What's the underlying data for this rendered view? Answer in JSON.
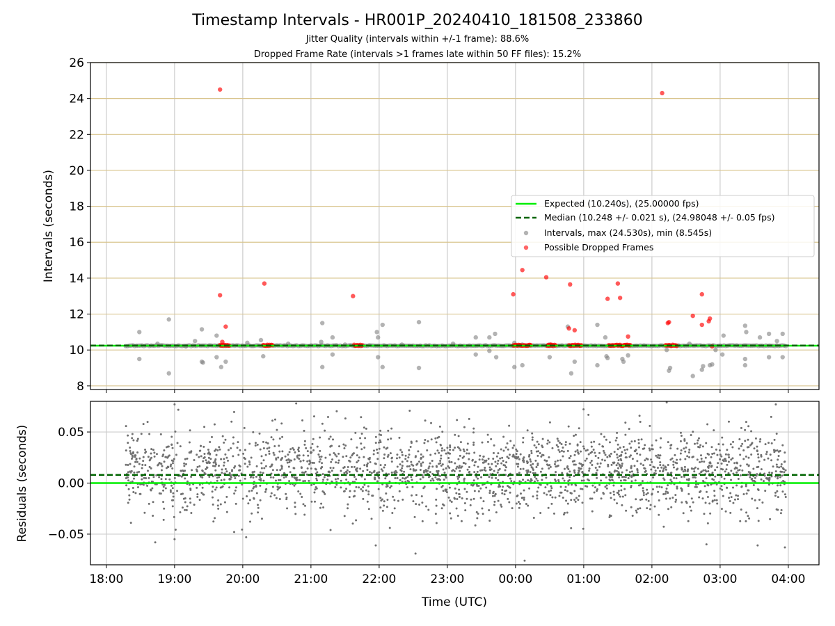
{
  "header": {
    "title": "Timestamp Intervals - HR001P_20240410_181508_233860",
    "subtitle1": "Jitter Quality (intervals within +/-1 frame): 88.6%",
    "subtitle2": "Dropped Frame Rate (intervals >1 frames late within 50 FF files): 15.2%"
  },
  "chart_data": [
    {
      "type": "scatter",
      "panel": "top",
      "ylabel": "Intervals (seconds)",
      "ylim": [
        7.8,
        26
      ],
      "yticks": [
        8,
        10,
        12,
        14,
        16,
        18,
        20,
        22,
        24,
        26
      ],
      "xlim": [
        "17:46",
        "04:27"
      ],
      "xticks": [
        "18:00",
        "19:00",
        "20:00",
        "21:00",
        "22:00",
        "23:00",
        "00:00",
        "01:00",
        "02:00",
        "03:00",
        "04:00"
      ],
      "grid": true,
      "legend_position": "center-right",
      "reference_lines": [
        {
          "name": "Expected (10.240s), (25.00000 fps)",
          "value": 10.24,
          "style": "solid",
          "color": "#00ee00"
        },
        {
          "name": "Median (10.248 +/- 0.021 s), (24.98048 +/- 0.05 fps)",
          "value": 10.248,
          "style": "dashed",
          "color": "#006400"
        }
      ],
      "series": [
        {
          "name": "Intervals, max (24.530s), min (8.545s)",
          "color": "#808080",
          "baseline": {
            "x_start": "18:17",
            "x_end": "03:58",
            "y": 10.24
          },
          "points": [
            [
              "18:29",
              11.0
            ],
            [
              "18:29",
              9.5
            ],
            [
              "18:55",
              11.7
            ],
            [
              "18:55",
              8.7
            ],
            [
              "19:18",
              10.5
            ],
            [
              "19:24",
              11.15
            ],
            [
              "19:24",
              9.35
            ],
            [
              "19:25",
              9.3
            ],
            [
              "19:37",
              10.8
            ],
            [
              "19:37",
              9.6
            ],
            [
              "19:41",
              9.05
            ],
            [
              "19:45",
              9.35
            ],
            [
              "20:04",
              10.4
            ],
            [
              "20:16",
              10.55
            ],
            [
              "20:18",
              9.65
            ],
            [
              "21:09",
              10.45
            ],
            [
              "21:10",
              11.5
            ],
            [
              "21:10",
              9.05
            ],
            [
              "21:19",
              10.7
            ],
            [
              "21:19",
              9.75
            ],
            [
              "21:58",
              11.0
            ],
            [
              "21:59",
              10.7
            ],
            [
              "21:59",
              9.6
            ],
            [
              "22:03",
              11.4
            ],
            [
              "22:03",
              9.05
            ],
            [
              "22:35",
              11.55
            ],
            [
              "22:35",
              9.0
            ],
            [
              "23:25",
              10.7
            ],
            [
              "23:25",
              9.75
            ],
            [
              "23:37",
              10.7
            ],
            [
              "23:37",
              9.95
            ],
            [
              "23:42",
              10.9
            ],
            [
              "23:43",
              9.6
            ],
            [
              "23:59",
              10.4
            ],
            [
              "23:59",
              9.05
            ],
            [
              "00:06",
              10.3
            ],
            [
              "00:06",
              9.15
            ],
            [
              "00:30",
              10.3
            ],
            [
              "00:30",
              9.6
            ],
            [
              "00:46",
              11.3
            ],
            [
              "00:49",
              8.7
            ],
            [
              "00:52",
              9.35
            ],
            [
              "01:12",
              11.4
            ],
            [
              "01:12",
              9.15
            ],
            [
              "01:19",
              10.7
            ],
            [
              "01:20",
              9.65
            ],
            [
              "01:21",
              9.55
            ],
            [
              "01:34",
              9.5
            ],
            [
              "01:35",
              9.35
            ],
            [
              "01:39",
              9.7
            ],
            [
              "02:13",
              10.0
            ],
            [
              "02:15",
              8.85
            ],
            [
              "02:16",
              9.0
            ],
            [
              "02:33",
              10.35
            ],
            [
              "02:36",
              8.55
            ],
            [
              "02:44",
              8.9
            ],
            [
              "02:45",
              9.1
            ],
            [
              "02:51",
              9.15
            ],
            [
              "02:53",
              9.2
            ],
            [
              "03:03",
              10.8
            ],
            [
              "03:02",
              9.75
            ],
            [
              "03:22",
              11.35
            ],
            [
              "03:23",
              11.0
            ],
            [
              "03:22",
              9.5
            ],
            [
              "03:22",
              9.15
            ],
            [
              "03:35",
              10.7
            ],
            [
              "03:43",
              10.9
            ],
            [
              "03:43",
              9.6
            ],
            [
              "03:50",
              10.5
            ],
            [
              "03:55",
              10.9
            ],
            [
              "03:55",
              9.6
            ],
            [
              "02:56",
              10.0
            ],
            [
              "18:45",
              10.35
            ],
            [
              "19:10",
              10.2
            ],
            [
              "20:40",
              10.35
            ],
            [
              "21:30",
              10.3
            ],
            [
              "22:20",
              10.3
            ],
            [
              "23:05",
              10.35
            ]
          ]
        },
        {
          "name": "Possible Dropped Frames",
          "color": "#ff0000",
          "clusters": [
            {
              "x_start": "19:40",
              "x_end": "19:49",
              "y": 10.26
            },
            {
              "x_start": "20:18",
              "x_end": "20:27",
              "y": 10.26
            },
            {
              "x_start": "21:38",
              "x_end": "21:46",
              "y": 10.26
            },
            {
              "x_start": "23:58",
              "x_end": "00:14",
              "y": 10.26
            },
            {
              "x_start": "00:28",
              "x_end": "00:36",
              "y": 10.26
            },
            {
              "x_start": "00:47",
              "x_end": "00:58",
              "y": 10.26
            },
            {
              "x_start": "01:22",
              "x_end": "01:41",
              "y": 10.26
            },
            {
              "x_start": "02:12",
              "x_end": "02:22",
              "y": 10.26
            }
          ],
          "points": [
            [
              "19:40",
              24.5
            ],
            [
              "19:40",
              13.05
            ],
            [
              "19:42",
              10.45
            ],
            [
              "19:45",
              11.3
            ],
            [
              "20:19",
              13.7
            ],
            [
              "21:37",
              13.0
            ],
            [
              "23:58",
              13.1
            ],
            [
              "00:06",
              14.45
            ],
            [
              "00:27",
              14.05
            ],
            [
              "00:31",
              10.3
            ],
            [
              "00:29",
              10.25
            ],
            [
              "00:47",
              11.2
            ],
            [
              "00:48",
              13.65
            ],
            [
              "00:52",
              11.1
            ],
            [
              "01:21",
              12.85
            ],
            [
              "01:30",
              13.7
            ],
            [
              "01:32",
              12.9
            ],
            [
              "01:39",
              10.75
            ],
            [
              "02:09",
              24.3
            ],
            [
              "02:14",
              11.5
            ],
            [
              "02:15",
              11.55
            ],
            [
              "02:36",
              11.9
            ],
            [
              "02:44",
              13.1
            ],
            [
              "02:44",
              11.4
            ],
            [
              "02:50",
              11.6
            ],
            [
              "02:51",
              11.75
            ],
            [
              "02:53",
              10.2
            ]
          ]
        }
      ]
    },
    {
      "type": "scatter",
      "panel": "bottom",
      "xlabel": "Time (UTC)",
      "ylabel": "Residuals (seconds)",
      "ylim": [
        -0.08,
        0.08
      ],
      "yticks": [
        "−0.05",
        "0.00",
        "0.05"
      ],
      "ytick_values": [
        -0.05,
        0.0,
        0.05
      ],
      "xlim": [
        "17:46",
        "04:27"
      ],
      "xticks": [
        "18:00",
        "19:00",
        "20:00",
        "21:00",
        "22:00",
        "23:00",
        "00:00",
        "01:00",
        "02:00",
        "03:00",
        "04:00"
      ],
      "grid": true,
      "reference_lines": [
        {
          "value": 0.0,
          "style": "solid",
          "color": "#00ee00"
        },
        {
          "value": 0.008,
          "style": "dashed",
          "color": "#006400"
        }
      ],
      "series": [
        {
          "name": "Residuals",
          "color": "#707070",
          "x_range": [
            "18:17",
            "03:58"
          ],
          "count": 2300,
          "y_distribution": {
            "center": 0.012,
            "spread": 0.02,
            "min": -0.077,
            "max": 0.079
          },
          "notable_points": [
            [
              "19:00",
              0.077
            ],
            [
              "20:47",
              0.078
            ],
            [
              "02:13",
              0.079
            ],
            [
              "03:49",
              0.077
            ],
            [
              "00:08",
              -0.076
            ],
            [
              "22:32",
              -0.069
            ],
            [
              "21:57",
              -0.061
            ],
            [
              "03:33",
              -0.061
            ],
            [
              "02:48",
              -0.06
            ],
            [
              "18:43",
              -0.058
            ],
            [
              "19:00",
              -0.055
            ],
            [
              "20:03",
              -0.053
            ],
            [
              "03:57",
              -0.063
            ]
          ]
        }
      ]
    }
  ]
}
